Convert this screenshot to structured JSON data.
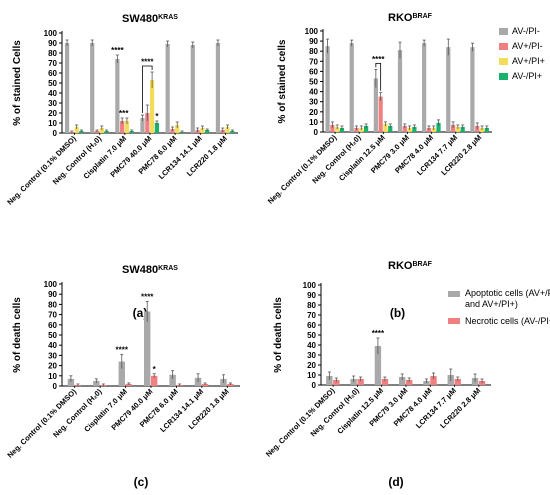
{
  "colors": {
    "gray": "#a9a9a9",
    "red": "#f08080",
    "yellow": "#f3dc5a",
    "green": "#19b26b",
    "axis": "#000000"
  },
  "categories": [
    "Neg. Control (0.1% DMSO)",
    "Neg. Control (H₂0)",
    "Cisplatin 7.0 μM",
    "PMC79 40.0 μM",
    "PMC78 6.0 μM",
    "LCR134 14.1 μM",
    "LCR220 1.8 μM"
  ],
  "categories_rko": [
    "Neg. Control (0.1% DMSO)",
    "Neg. Control (H₂0)",
    "Cisplatin 12.5 μM",
    "PMC79 3.0 μM",
    "PMC78 4.0 μM",
    "LCR134 7.7 μM",
    "LCR220 2.8 μM"
  ],
  "legend_top": [
    "AV-/PI-",
    "AV+/PI-",
    "AV+/PI+",
    "AV-/PI+"
  ],
  "legend_bottom": [
    "Apoptotic cells (AV+/PI- and AV+/PI+)",
    "Necrotic cells (AV-/PI+)"
  ],
  "chart_data": [
    {
      "panel": "(a)",
      "type": "bar",
      "title": "SW480",
      "title_sup": "KRAS",
      "ylabel": "% of stained Cells",
      "ylim": [
        0,
        100
      ],
      "yticks": [
        0,
        10,
        20,
        30,
        40,
        50,
        60,
        70,
        80,
        90,
        100
      ],
      "categories_key": "categories",
      "series": [
        {
          "name": "AV-/PI-",
          "color": "gray",
          "values": [
            90,
            90,
            74,
            15,
            89,
            88,
            90
          ],
          "err": [
            3,
            3,
            4,
            3,
            3,
            3,
            3
          ]
        },
        {
          "name": "AV+/PI-",
          "color": "red",
          "values": [
            1,
            2,
            12,
            20,
            4,
            3,
            3
          ],
          "err": [
            1,
            1,
            3,
            8,
            2,
            2,
            2
          ]
        },
        {
          "name": "AV+/PI+",
          "color": "yellow",
          "values": [
            6,
            5,
            12,
            53,
            8,
            5,
            6
          ],
          "err": [
            2,
            2,
            3,
            8,
            3,
            2,
            2
          ]
        },
        {
          "name": "AV-/PI+",
          "color": "green",
          "values": [
            2,
            2,
            2,
            10,
            1,
            3,
            2
          ],
          "err": [
            1,
            1,
            1,
            2,
            1,
            1,
            1
          ]
        }
      ],
      "annotations": [
        {
          "cat": 2,
          "series": 0,
          "text": "****"
        },
        {
          "cat": 2,
          "series": 1,
          "text": "**"
        },
        {
          "cat": 2,
          "series": 2,
          "text": "*"
        },
        {
          "cat": 3,
          "series": 0,
          "text": "****",
          "bracket_to_series": 2
        },
        {
          "cat": 3,
          "series": 3,
          "text": "*"
        }
      ]
    },
    {
      "panel": "(b)",
      "type": "bar",
      "title": "RKO",
      "title_sup": "BRAF",
      "ylabel": "% of stained cells",
      "ylim": [
        0,
        100
      ],
      "yticks": [
        0,
        10,
        20,
        30,
        40,
        50,
        60,
        70,
        80,
        90,
        100
      ],
      "categories_key": "categories_rko",
      "series": [
        {
          "name": "AV-/PI-",
          "color": "gray",
          "values": [
            85,
            88,
            53,
            81,
            88,
            84,
            84
          ],
          "err": [
            7,
            3,
            9,
            8,
            3,
            8,
            4
          ]
        },
        {
          "name": "AV+/PI-",
          "color": "red",
          "values": [
            7,
            4,
            35,
            6,
            4,
            7,
            6
          ],
          "err": [
            3,
            2,
            4,
            2,
            2,
            3,
            3
          ]
        },
        {
          "name": "AV+/PI+",
          "color": "yellow",
          "values": [
            5,
            4,
            8,
            4,
            4,
            5,
            4
          ],
          "err": [
            2,
            2,
            2,
            2,
            2,
            2,
            2
          ]
        },
        {
          "name": "AV-/PI+",
          "color": "green",
          "values": [
            4,
            6,
            6,
            5,
            9,
            5,
            4
          ],
          "err": [
            2,
            2,
            2,
            2,
            3,
            2,
            2
          ]
        }
      ],
      "annotations": [
        {
          "cat": 2,
          "series": 0,
          "text": "****",
          "bracket_to_series": 1
        }
      ]
    },
    {
      "panel": "(c)",
      "type": "bar",
      "title": "SW480",
      "title_sup": "KRAS",
      "ylabel": "% of death cells",
      "ylim": [
        0,
        100
      ],
      "yticks": [
        0,
        10,
        20,
        30,
        40,
        50,
        60,
        70,
        80,
        90,
        100
      ],
      "categories_key": "categories",
      "series": [
        {
          "name": "Apoptotic cells (AV+/PI- and AV+/PI+)",
          "color": "gray",
          "values": [
            7,
            5,
            24,
            73,
            11,
            8,
            7
          ],
          "err": [
            3,
            2,
            7,
            10,
            4,
            4,
            4
          ]
        },
        {
          "name": "Necrotic cells (AV-/PI+)",
          "color": "red",
          "values": [
            1,
            1,
            2,
            10,
            1,
            2,
            2
          ],
          "err": [
            1,
            1,
            1,
            2,
            1,
            1,
            1
          ]
        }
      ],
      "annotations": [
        {
          "cat": 2,
          "series": 0,
          "text": "****"
        },
        {
          "cat": 3,
          "series": 0,
          "text": "****"
        },
        {
          "cat": 3,
          "series": 1,
          "text": "*"
        }
      ]
    },
    {
      "panel": "(d)",
      "type": "bar",
      "title": "RKO",
      "title_sup": "BRAF",
      "ylabel": "% of  death cells",
      "ylim": [
        0,
        100
      ],
      "yticks": [
        0,
        10,
        20,
        30,
        40,
        50,
        60,
        70,
        80,
        90,
        100
      ],
      "categories_key": "categories_rko",
      "series": [
        {
          "name": "Apoptotic cells (AV+/PI- and AV+/PI+)",
          "color": "gray",
          "values": [
            9,
            6,
            39,
            8,
            4,
            10,
            7
          ],
          "err": [
            4,
            3,
            8,
            3,
            2,
            6,
            4
          ]
        },
        {
          "name": "Necrotic cells (AV-/PI+)",
          "color": "red",
          "values": [
            5,
            6,
            6,
            5,
            9,
            6,
            4
          ],
          "err": [
            2,
            2,
            2,
            2,
            3,
            2,
            2
          ]
        }
      ],
      "annotations": [
        {
          "cat": 2,
          "series": 0,
          "text": "****"
        }
      ]
    }
  ]
}
